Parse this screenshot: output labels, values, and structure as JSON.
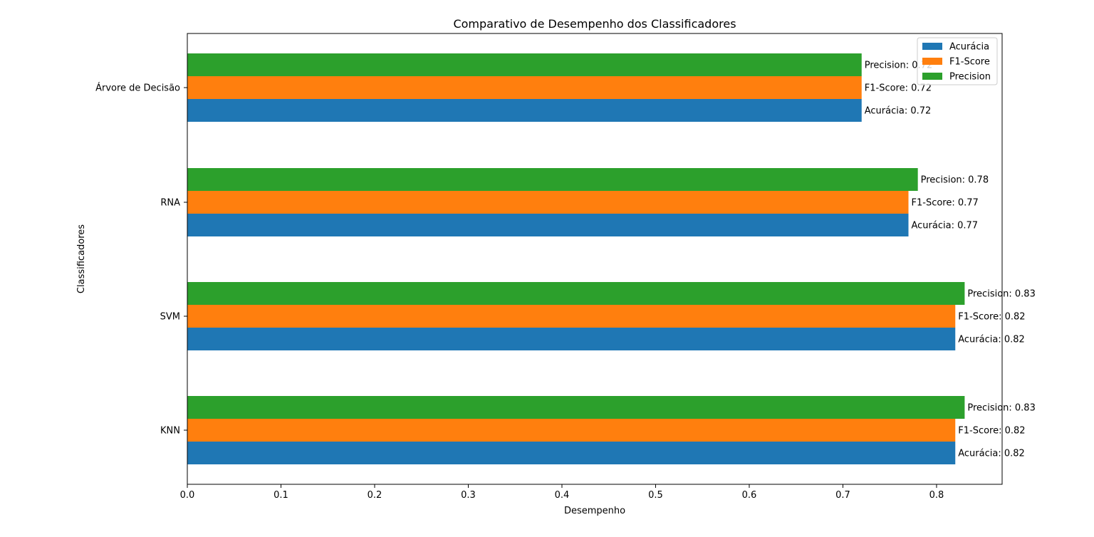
{
  "chart_data": {
    "type": "bar",
    "orientation": "horizontal",
    "title": "Comparativo de Desempenho dos Classificadores",
    "xlabel": "Desempenho",
    "ylabel": "Classificadores",
    "categories": [
      "KNN",
      "SVM",
      "RNA",
      "Árvore de Decisão"
    ],
    "xlim": [
      0,
      0.87
    ],
    "xticks": [
      "0.0",
      "0.1",
      "0.2",
      "0.3",
      "0.4",
      "0.5",
      "0.6",
      "0.7",
      "0.8"
    ],
    "grid": false,
    "legend_position": "top-right",
    "series": [
      {
        "name": "Acurácia",
        "color": "#1f77b4",
        "values": [
          0.82,
          0.82,
          0.77,
          0.72
        ],
        "labels": [
          "Acurácia: 0.82",
          "Acurácia: 0.82",
          "Acurácia: 0.77",
          "Acurácia: 0.72"
        ]
      },
      {
        "name": "F1-Score",
        "color": "#ff7f0e",
        "values": [
          0.82,
          0.82,
          0.77,
          0.72
        ],
        "labels": [
          "F1-Score: 0.82",
          "F1-Score: 0.82",
          "F1-Score: 0.77",
          "F1-Score: 0.72"
        ]
      },
      {
        "name": "Precision",
        "color": "#2ca02c",
        "values": [
          0.83,
          0.83,
          0.78,
          0.72
        ],
        "labels": [
          "Precision: 0.83",
          "Precision: 0.83",
          "Precision: 0.78",
          "Precision: 0.72"
        ]
      }
    ]
  }
}
